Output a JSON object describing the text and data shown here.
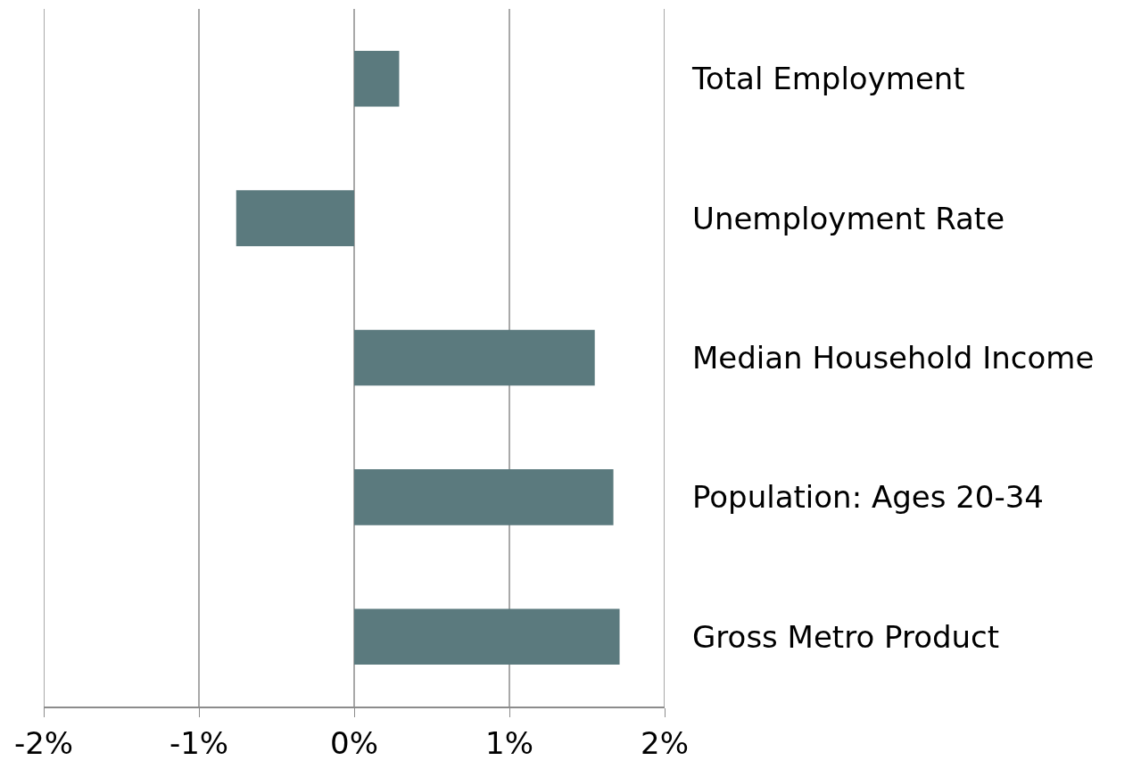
{
  "chart_data": {
    "type": "bar",
    "orientation": "horizontal",
    "categories": [
      "Total Employment",
      "Unemployment Rate",
      "Median Household Income",
      "Population: Ages 20-34",
      "Gross Metro Product"
    ],
    "values": [
      0.29,
      -0.76,
      1.55,
      1.67,
      1.71
    ],
    "color": "#5b7a7e",
    "xlim": [
      -2,
      2
    ],
    "xticks": [
      {
        "value": -2,
        "label": "-2%"
      },
      {
        "value": -1,
        "label": "-1%"
      },
      {
        "value": 0,
        "label": "0%"
      },
      {
        "value": 1,
        "label": "1%"
      },
      {
        "value": 2,
        "label": "2%"
      }
    ],
    "grid": "x"
  }
}
